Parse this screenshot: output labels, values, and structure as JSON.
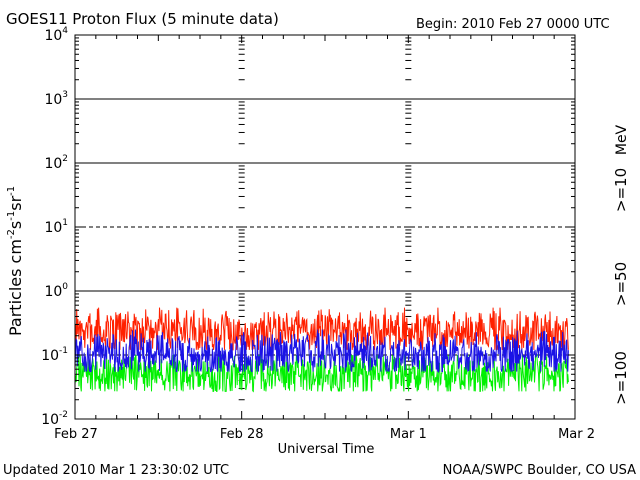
{
  "header": {
    "title": "GOES11 Proton Flux (5 minute data)",
    "begin": "Begin: 2010 Feb 27 0000 UTC"
  },
  "footer": {
    "updated": "Updated 2010 Mar  1 23:30:02 UTC",
    "source": "NOAA/SWPC Boulder, CO USA"
  },
  "chart_data": {
    "type": "line",
    "title": "GOES11 Proton Flux (5 minute data)",
    "xlabel": "Universal Time",
    "ylabel_parts": {
      "base": "Particles cm",
      "e1": "-2",
      "mid1": "s",
      "e2": "-1",
      "mid2": "sr",
      "e3": "-1"
    },
    "ylabel": "Particles cm-2 s-1 sr-1",
    "y_scale": "log",
    "ylim": [
      0.01,
      10000
    ],
    "y_ticks": [
      {
        "value": 0.01,
        "exp": "-2"
      },
      {
        "value": 0.1,
        "exp": "-1"
      },
      {
        "value": 1,
        "exp": "0"
      },
      {
        "value": 10,
        "exp": "1"
      },
      {
        "value": 100,
        "exp": "2"
      },
      {
        "value": 1000,
        "exp": "3"
      },
      {
        "value": 10000,
        "exp": "4"
      }
    ],
    "tick_base": "10",
    "x_ticks": [
      "Feb 27",
      "Feb 28",
      "Mar 1",
      "Mar 2"
    ],
    "xlim": [
      "2010-02-27 00:00",
      "2010-03-02 00:00"
    ],
    "reference_lines": [
      {
        "value": 1000,
        "style": "solid"
      },
      {
        "value": 100,
        "style": "solid"
      },
      {
        "value": 10,
        "style": "dashed"
      },
      {
        "value": 1,
        "style": "solid"
      },
      {
        "value": 0.1,
        "style": "dashed"
      }
    ],
    "legend_unit": "MeV",
    "legend_placement": "right",
    "series": [
      {
        "name": ">=10",
        "color": "#ff2000",
        "x": [
          "Feb 27 00:00",
          "Feb 27 06:00",
          "Feb 27 12:00",
          "Feb 27 18:00",
          "Feb 28 00:00",
          "Feb 28 06:00",
          "Feb 28 12:00",
          "Feb 28 18:00",
          "Mar 1 00:00",
          "Mar 1 06:00",
          "Mar 1 12:00",
          "Mar 1 18:00",
          "Mar 1 23:30"
        ],
        "typical": [
          0.22,
          0.23,
          0.24,
          0.23,
          0.22,
          0.24,
          0.25,
          0.23,
          0.24,
          0.23,
          0.22,
          0.22,
          0.22
        ],
        "range": [
          0.12,
          0.55
        ]
      },
      {
        "name": ">=50",
        "color": "#1a12e6",
        "x": [
          "Feb 27 00:00",
          "Feb 27 06:00",
          "Feb 27 12:00",
          "Feb 27 18:00",
          "Feb 28 00:00",
          "Feb 28 06:00",
          "Feb 28 12:00",
          "Feb 28 18:00",
          "Mar 1 00:00",
          "Mar 1 06:00",
          "Mar 1 12:00",
          "Mar 1 18:00",
          "Mar 1 23:30"
        ],
        "typical": [
          0.1,
          0.1,
          0.11,
          0.1,
          0.1,
          0.11,
          0.11,
          0.1,
          0.1,
          0.1,
          0.1,
          0.1,
          0.1
        ],
        "range": [
          0.055,
          0.25
        ]
      },
      {
        "name": ">=100",
        "color": "#00f000",
        "x": [
          "Feb 27 00:00",
          "Feb 27 06:00",
          "Feb 27 12:00",
          "Feb 27 18:00",
          "Feb 28 00:00",
          "Feb 28 06:00",
          "Feb 28 12:00",
          "Feb 28 18:00",
          "Mar 1 00:00",
          "Mar 1 06:00",
          "Mar 1 12:00",
          "Mar 1 18:00",
          "Mar 1 23:30"
        ],
        "typical": [
          0.05,
          0.05,
          0.05,
          0.05,
          0.05,
          0.05,
          0.05,
          0.05,
          0.05,
          0.05,
          0.05,
          0.05,
          0.05
        ],
        "range": [
          0.027,
          0.1
        ]
      }
    ],
    "grid": false
  }
}
